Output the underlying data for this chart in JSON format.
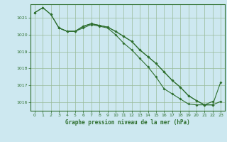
{
  "x": [
    0,
    1,
    2,
    3,
    4,
    5,
    6,
    7,
    8,
    9,
    10,
    11,
    12,
    13,
    14,
    15,
    16,
    17,
    18,
    19,
    20,
    21,
    22,
    23
  ],
  "series1": [
    1021.3,
    1021.6,
    1021.2,
    1020.4,
    1020.2,
    1020.2,
    1020.4,
    1020.6,
    1020.5,
    1020.4,
    1020.0,
    1019.5,
    1019.1,
    1018.6,
    1018.1,
    1017.5,
    1016.8,
    1016.5,
    1016.2,
    1015.9,
    1015.85,
    1015.85,
    1016.05,
    null
  ],
  "series2": [
    1021.3,
    1021.6,
    1021.2,
    1020.4,
    1020.2,
    1020.2,
    1020.5,
    1020.65,
    1020.55,
    1020.45,
    1020.2,
    1019.9,
    1019.6,
    1019.1,
    1018.7,
    1018.3,
    1017.8,
    1017.3,
    1016.9,
    1016.4,
    1016.1,
    1015.85,
    1015.85,
    1016.05
  ],
  "series3": [
    null,
    null,
    null,
    1020.4,
    1020.2,
    1020.2,
    1020.5,
    1020.65,
    1020.55,
    1020.45,
    1020.2,
    1019.9,
    1019.6,
    1019.1,
    1018.7,
    1018.3,
    1017.8,
    1017.3,
    1016.9,
    1016.4,
    1016.1,
    1015.85,
    1015.85,
    1017.2
  ],
  "line_color": "#2d6e2d",
  "bg_color": "#cde8f0",
  "grid_color": "#99bb99",
  "text_color": "#2d6e2d",
  "xlabel": "Graphe pression niveau de la mer (hPa)",
  "ylim": [
    1015.5,
    1021.8
  ],
  "xlim": [
    -0.5,
    23.5
  ],
  "yticks": [
    1016,
    1017,
    1018,
    1019,
    1020,
    1021
  ],
  "xticks": [
    0,
    1,
    2,
    3,
    4,
    5,
    6,
    7,
    8,
    9,
    10,
    11,
    12,
    13,
    14,
    15,
    16,
    17,
    18,
    19,
    20,
    21,
    22,
    23
  ]
}
